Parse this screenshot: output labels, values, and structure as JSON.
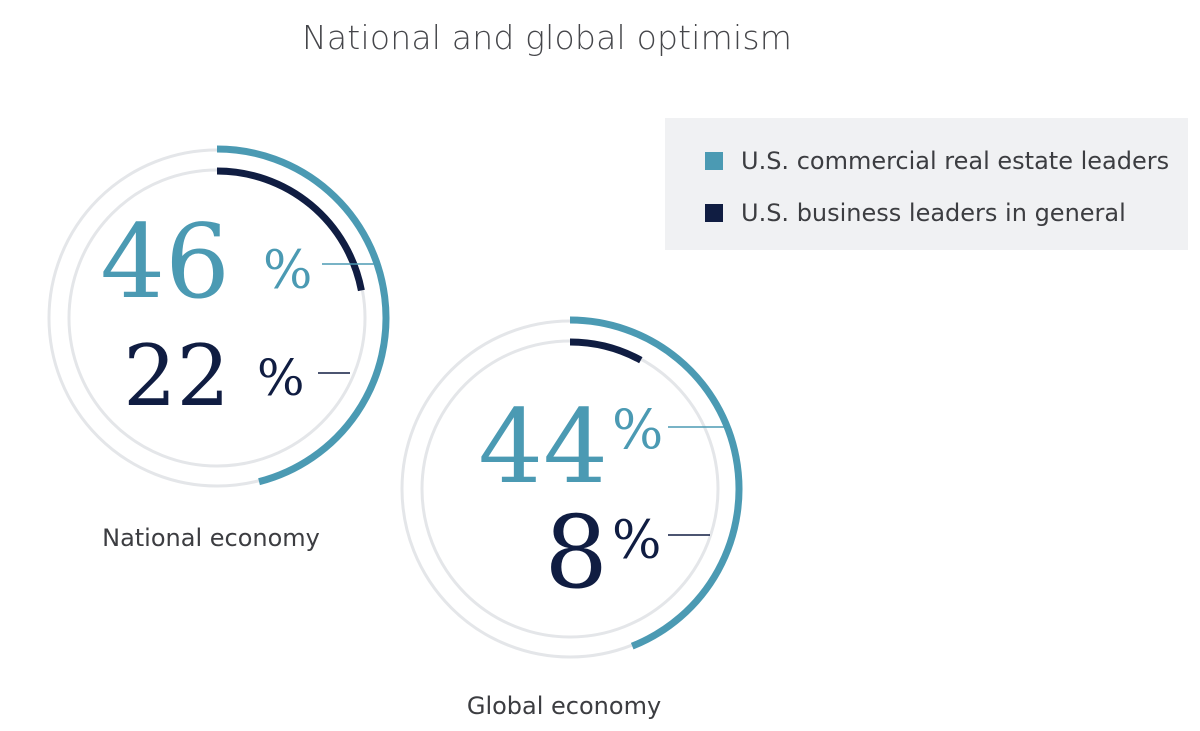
{
  "chart_data": {
    "type": "radial-bar",
    "title": "National and global optimism",
    "legend": {
      "placement": "top-right",
      "entries": [
        {
          "name": "U.S. commercial real estate leaders",
          "color": "#4b9ab3"
        },
        {
          "name": "U.S. business leaders in general",
          "color": "#101d42"
        }
      ]
    },
    "categories": [
      "National economy",
      "Global economy"
    ],
    "series": [
      {
        "name": "U.S. commercial real estate leaders",
        "values": [
          46,
          44
        ]
      },
      {
        "name": "U.S. business leaders in general",
        "values": [
          22,
          8
        ]
      }
    ],
    "value_labels": [
      [
        "46",
        "22"
      ],
      [
        "44",
        "8"
      ]
    ],
    "unit": "%",
    "track_color": "#e4e6e9"
  }
}
